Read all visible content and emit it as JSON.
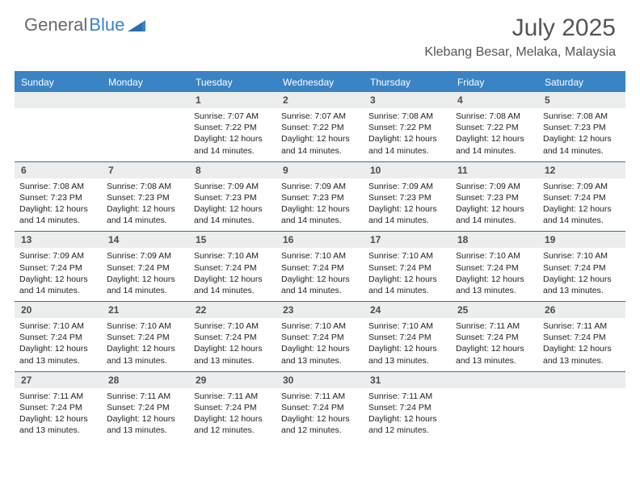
{
  "brand": {
    "word1": "General",
    "word2": "Blue"
  },
  "title": "July 2025",
  "location": "Klebang Besar, Melaka, Malaysia",
  "colors": {
    "header_bg": "#3a83c4",
    "header_text": "#ffffff",
    "num_bg": "#eceded",
    "row_border": "#3a6ea5",
    "title_color": "#555555",
    "text_color": "#222222"
  },
  "day_headers": [
    "Sunday",
    "Monday",
    "Tuesday",
    "Wednesday",
    "Thursday",
    "Friday",
    "Saturday"
  ],
  "weeks": [
    [
      {
        "n": "",
        "sunrise": "",
        "sunset": "",
        "daylight": ""
      },
      {
        "n": "",
        "sunrise": "",
        "sunset": "",
        "daylight": ""
      },
      {
        "n": "1",
        "sunrise": "Sunrise: 7:07 AM",
        "sunset": "Sunset: 7:22 PM",
        "daylight": "Daylight: 12 hours and 14 minutes."
      },
      {
        "n": "2",
        "sunrise": "Sunrise: 7:07 AM",
        "sunset": "Sunset: 7:22 PM",
        "daylight": "Daylight: 12 hours and 14 minutes."
      },
      {
        "n": "3",
        "sunrise": "Sunrise: 7:08 AM",
        "sunset": "Sunset: 7:22 PM",
        "daylight": "Daylight: 12 hours and 14 minutes."
      },
      {
        "n": "4",
        "sunrise": "Sunrise: 7:08 AM",
        "sunset": "Sunset: 7:22 PM",
        "daylight": "Daylight: 12 hours and 14 minutes."
      },
      {
        "n": "5",
        "sunrise": "Sunrise: 7:08 AM",
        "sunset": "Sunset: 7:23 PM",
        "daylight": "Daylight: 12 hours and 14 minutes."
      }
    ],
    [
      {
        "n": "6",
        "sunrise": "Sunrise: 7:08 AM",
        "sunset": "Sunset: 7:23 PM",
        "daylight": "Daylight: 12 hours and 14 minutes."
      },
      {
        "n": "7",
        "sunrise": "Sunrise: 7:08 AM",
        "sunset": "Sunset: 7:23 PM",
        "daylight": "Daylight: 12 hours and 14 minutes."
      },
      {
        "n": "8",
        "sunrise": "Sunrise: 7:09 AM",
        "sunset": "Sunset: 7:23 PM",
        "daylight": "Daylight: 12 hours and 14 minutes."
      },
      {
        "n": "9",
        "sunrise": "Sunrise: 7:09 AM",
        "sunset": "Sunset: 7:23 PM",
        "daylight": "Daylight: 12 hours and 14 minutes."
      },
      {
        "n": "10",
        "sunrise": "Sunrise: 7:09 AM",
        "sunset": "Sunset: 7:23 PM",
        "daylight": "Daylight: 12 hours and 14 minutes."
      },
      {
        "n": "11",
        "sunrise": "Sunrise: 7:09 AM",
        "sunset": "Sunset: 7:23 PM",
        "daylight": "Daylight: 12 hours and 14 minutes."
      },
      {
        "n": "12",
        "sunrise": "Sunrise: 7:09 AM",
        "sunset": "Sunset: 7:24 PM",
        "daylight": "Daylight: 12 hours and 14 minutes."
      }
    ],
    [
      {
        "n": "13",
        "sunrise": "Sunrise: 7:09 AM",
        "sunset": "Sunset: 7:24 PM",
        "daylight": "Daylight: 12 hours and 14 minutes."
      },
      {
        "n": "14",
        "sunrise": "Sunrise: 7:09 AM",
        "sunset": "Sunset: 7:24 PM",
        "daylight": "Daylight: 12 hours and 14 minutes."
      },
      {
        "n": "15",
        "sunrise": "Sunrise: 7:10 AM",
        "sunset": "Sunset: 7:24 PM",
        "daylight": "Daylight: 12 hours and 14 minutes."
      },
      {
        "n": "16",
        "sunrise": "Sunrise: 7:10 AM",
        "sunset": "Sunset: 7:24 PM",
        "daylight": "Daylight: 12 hours and 14 minutes."
      },
      {
        "n": "17",
        "sunrise": "Sunrise: 7:10 AM",
        "sunset": "Sunset: 7:24 PM",
        "daylight": "Daylight: 12 hours and 14 minutes."
      },
      {
        "n": "18",
        "sunrise": "Sunrise: 7:10 AM",
        "sunset": "Sunset: 7:24 PM",
        "daylight": "Daylight: 12 hours and 13 minutes."
      },
      {
        "n": "19",
        "sunrise": "Sunrise: 7:10 AM",
        "sunset": "Sunset: 7:24 PM",
        "daylight": "Daylight: 12 hours and 13 minutes."
      }
    ],
    [
      {
        "n": "20",
        "sunrise": "Sunrise: 7:10 AM",
        "sunset": "Sunset: 7:24 PM",
        "daylight": "Daylight: 12 hours and 13 minutes."
      },
      {
        "n": "21",
        "sunrise": "Sunrise: 7:10 AM",
        "sunset": "Sunset: 7:24 PM",
        "daylight": "Daylight: 12 hours and 13 minutes."
      },
      {
        "n": "22",
        "sunrise": "Sunrise: 7:10 AM",
        "sunset": "Sunset: 7:24 PM",
        "daylight": "Daylight: 12 hours and 13 minutes."
      },
      {
        "n": "23",
        "sunrise": "Sunrise: 7:10 AM",
        "sunset": "Sunset: 7:24 PM",
        "daylight": "Daylight: 12 hours and 13 minutes."
      },
      {
        "n": "24",
        "sunrise": "Sunrise: 7:10 AM",
        "sunset": "Sunset: 7:24 PM",
        "daylight": "Daylight: 12 hours and 13 minutes."
      },
      {
        "n": "25",
        "sunrise": "Sunrise: 7:11 AM",
        "sunset": "Sunset: 7:24 PM",
        "daylight": "Daylight: 12 hours and 13 minutes."
      },
      {
        "n": "26",
        "sunrise": "Sunrise: 7:11 AM",
        "sunset": "Sunset: 7:24 PM",
        "daylight": "Daylight: 12 hours and 13 minutes."
      }
    ],
    [
      {
        "n": "27",
        "sunrise": "Sunrise: 7:11 AM",
        "sunset": "Sunset: 7:24 PM",
        "daylight": "Daylight: 12 hours and 13 minutes."
      },
      {
        "n": "28",
        "sunrise": "Sunrise: 7:11 AM",
        "sunset": "Sunset: 7:24 PM",
        "daylight": "Daylight: 12 hours and 13 minutes."
      },
      {
        "n": "29",
        "sunrise": "Sunrise: 7:11 AM",
        "sunset": "Sunset: 7:24 PM",
        "daylight": "Daylight: 12 hours and 12 minutes."
      },
      {
        "n": "30",
        "sunrise": "Sunrise: 7:11 AM",
        "sunset": "Sunset: 7:24 PM",
        "daylight": "Daylight: 12 hours and 12 minutes."
      },
      {
        "n": "31",
        "sunrise": "Sunrise: 7:11 AM",
        "sunset": "Sunset: 7:24 PM",
        "daylight": "Daylight: 12 hours and 12 minutes."
      },
      {
        "n": "",
        "sunrise": "",
        "sunset": "",
        "daylight": ""
      },
      {
        "n": "",
        "sunrise": "",
        "sunset": "",
        "daylight": ""
      }
    ]
  ]
}
